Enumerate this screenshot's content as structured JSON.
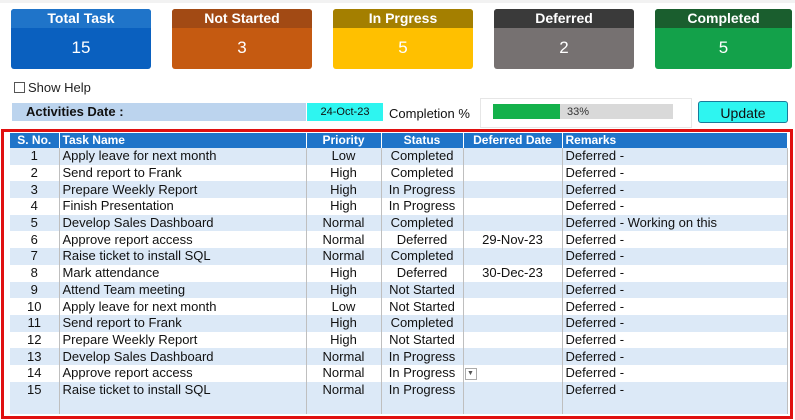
{
  "cards": [
    {
      "label": "Total Task",
      "value": "15",
      "head_color": "#1f74c9",
      "body_color": "#0a60bf"
    },
    {
      "label": "Not Started",
      "value": "3",
      "head_color": "#a24a14",
      "body_color": "#c55a11"
    },
    {
      "label": "In Prgress",
      "value": "5",
      "head_color": "#a47f00",
      "body_color": "#ffc000"
    },
    {
      "label": "Deferred",
      "value": "2",
      "head_color": "#3a3a3a",
      "body_color": "#767171"
    },
    {
      "label": "Completed",
      "value": "5",
      "head_color": "#1a5e2e",
      "body_color": "#13a14a"
    }
  ],
  "show_help_label": "Show Help",
  "activities_date_label": "Activities Date :",
  "activities_date_value": "24-Oct-23",
  "completion_label": "Completion %",
  "completion_text": "33%",
  "completion_fraction": 0.33,
  "update_button": "Update",
  "table": {
    "headers": [
      "S. No.",
      "Task Name",
      "Priority",
      "Status",
      "Deferred Date",
      "Remarks"
    ],
    "rows": [
      [
        "1",
        "Apply leave for next month",
        "Low",
        "Completed",
        "",
        "Deferred -"
      ],
      [
        "2",
        "Send report to Frank",
        "High",
        "Completed",
        "",
        "Deferred -"
      ],
      [
        "3",
        "Prepare Weekly Report",
        "High",
        "In Progress",
        "",
        "Deferred -"
      ],
      [
        "4",
        "Finish Presentation",
        "High",
        "In Progress",
        "",
        "Deferred -"
      ],
      [
        "5",
        "Develop Sales Dashboard",
        "Normal",
        "Completed",
        "",
        "Deferred - Working on this"
      ],
      [
        "6",
        "Approve report access",
        "Normal",
        "Deferred",
        "29-Nov-23",
        "Deferred -"
      ],
      [
        "7",
        "Raise ticket to install SQL",
        "Normal",
        "Completed",
        "",
        "Deferred -"
      ],
      [
        "8",
        "Mark attendance",
        "High",
        "Deferred",
        "30-Dec-23",
        "Deferred -"
      ],
      [
        "9",
        "Attend Team meeting",
        "High",
        "Not Started",
        "",
        "Deferred -"
      ],
      [
        "10",
        "Apply leave for next month",
        "Low",
        "Not Started",
        "",
        "Deferred -"
      ],
      [
        "11",
        "Send report to Frank",
        "High",
        "Completed",
        "",
        "Deferred -"
      ],
      [
        "12",
        "Prepare Weekly Report",
        "High",
        "Not Started",
        "",
        "Deferred -"
      ],
      [
        "13",
        "Develop Sales Dashboard",
        "Normal",
        "In Progress",
        "",
        "Deferred -"
      ],
      [
        "14",
        "Approve report access",
        "Normal",
        "In Progress",
        "",
        "Deferred -"
      ],
      [
        "15",
        "Raise ticket to install SQL",
        "Normal",
        "In Progress",
        "",
        "Deferred -"
      ]
    ],
    "dropdown_row": 13
  },
  "colors": {
    "frame": "#e01010",
    "header": "#1f74c9",
    "progress": "#14b14b",
    "accent_cyan": "#2ef5f0"
  }
}
